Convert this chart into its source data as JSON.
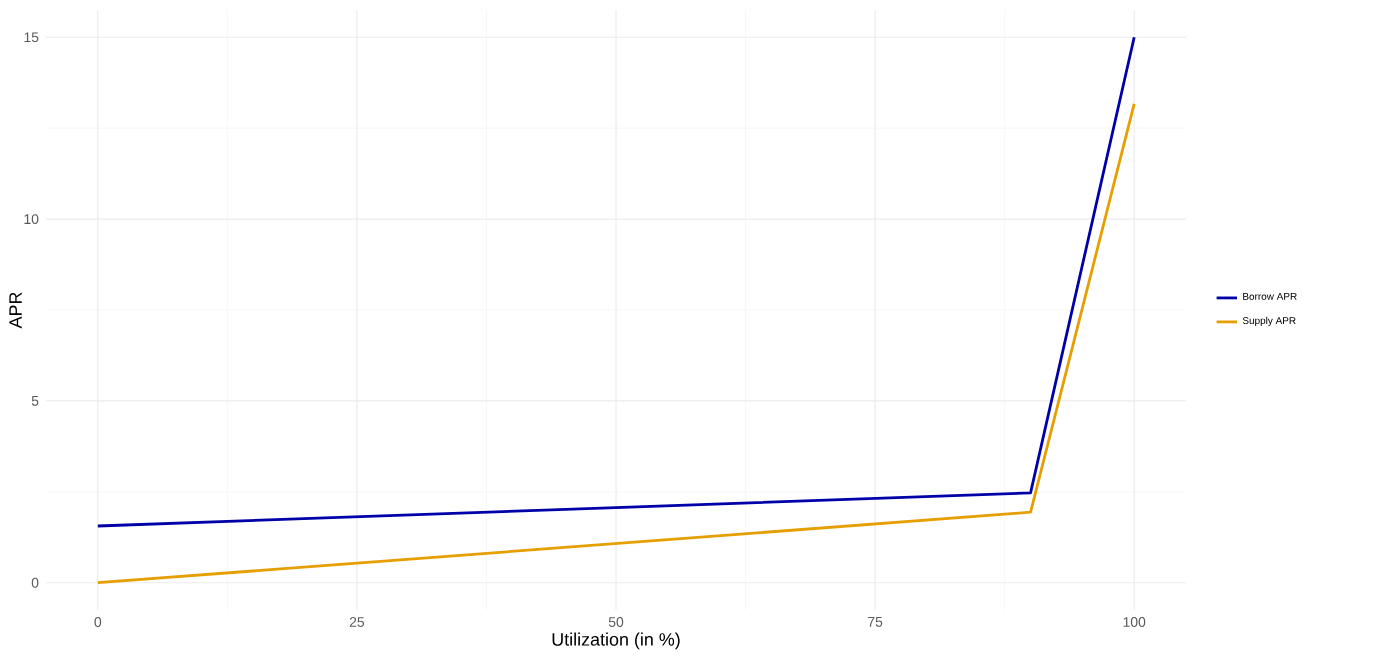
{
  "chart_data": {
    "type": "line",
    "xlabel": "Utilization (in %)",
    "ylabel": "APR",
    "x": [
      0,
      90,
      100
    ],
    "series": [
      {
        "name": "Borrow APR",
        "color": "#0000a8",
        "values": [
          1.56,
          2.47,
          15.0
        ]
      },
      {
        "name": "Supply APR",
        "color": "#e69f00",
        "values": [
          0,
          1.94,
          13.17
        ]
      }
    ],
    "xlim": [
      -5,
      105
    ],
    "ylim": [
      -0.75,
      15.75
    ],
    "xticks": [
      0,
      25,
      50,
      75,
      100
    ],
    "yticks": [
      0,
      5,
      10,
      15
    ],
    "grid": true,
    "legend": "right",
    "marker": "none",
    "line_style": "solid"
  }
}
